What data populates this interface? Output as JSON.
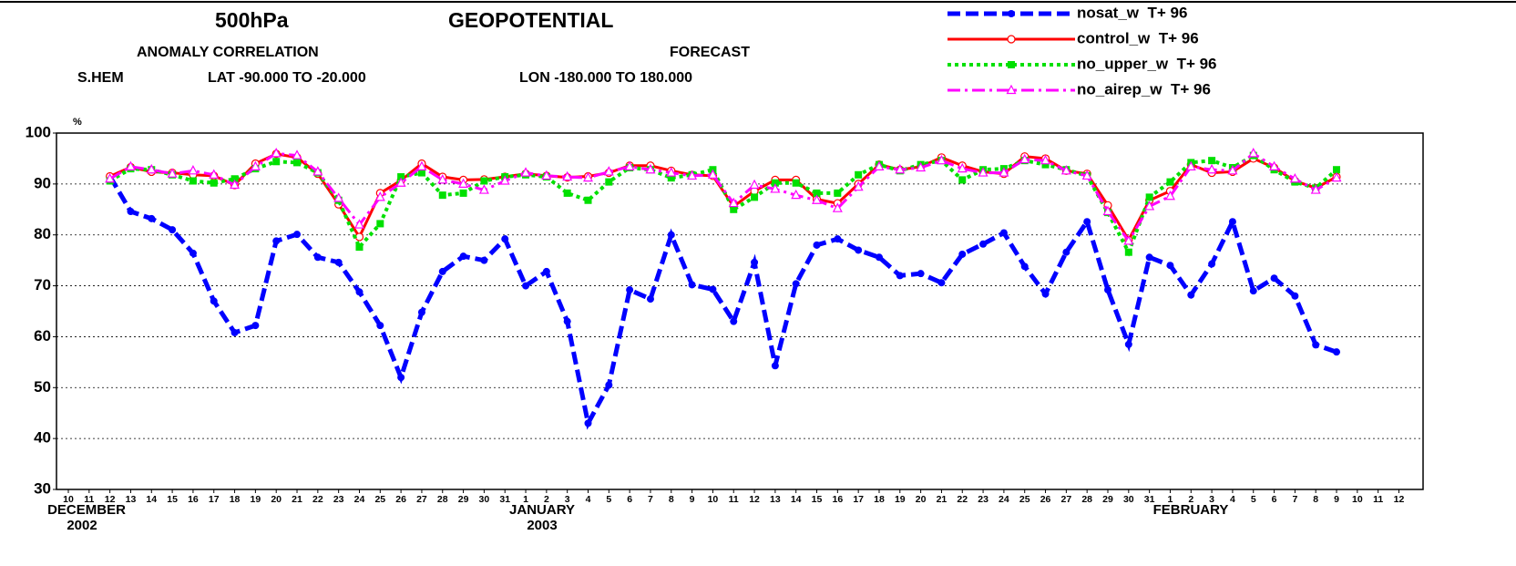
{
  "chart_data": {
    "type": "line",
    "title": "500hPa",
    "title2": "GEOPOTENTIAL",
    "subtitle": "ANOMALY CORRELATION",
    "subtitle2": "FORECAST",
    "region": "S.HEM",
    "lat_range": "LAT -90.000 TO -20.000",
    "lon_range": "LON -180.000 TO 180.000",
    "y_label": "%",
    "month_labels": [
      "DECEMBER",
      "JANUARY",
      "FEBRUARY"
    ],
    "year_labels": [
      "2002",
      "2003"
    ],
    "categories": [
      "10",
      "11",
      "12",
      "13",
      "14",
      "15",
      "16",
      "17",
      "18",
      "19",
      "20",
      "21",
      "22",
      "23",
      "24",
      "25",
      "26",
      "27",
      "28",
      "29",
      "30",
      "31",
      "1",
      "2",
      "3",
      "4",
      "5",
      "6",
      "7",
      "8",
      "9",
      "10",
      "11",
      "12",
      "13",
      "14",
      "15",
      "16",
      "17",
      "18",
      "19",
      "20",
      "21",
      "22",
      "23",
      "24",
      "25",
      "26",
      "27",
      "28",
      "29",
      "30",
      "31",
      "1",
      "2",
      "3",
      "4",
      "5",
      "6",
      "7",
      "8",
      "9",
      "10",
      "11",
      "12"
    ],
    "highlight_ticks": [
      5,
      12,
      19,
      26,
      33,
      40,
      47,
      54,
      61
    ],
    "highlight_color": "#ff0000",
    "ylim": [
      30,
      100
    ],
    "yticks": [
      30,
      40,
      50,
      60,
      70,
      80,
      90,
      100
    ],
    "grid": true,
    "legend": "top-right",
    "series": [
      {
        "name": "nosat_w  T+ 96",
        "color": "#0000ff",
        "dash": "dashed",
        "marker": "filled-circle",
        "values": [
          null,
          null,
          91.5,
          84.6,
          83.2,
          81,
          76.4,
          67,
          60.8,
          62.2,
          78.8,
          80.1,
          75.6,
          74.6,
          68.8,
          62.2,
          52,
          64.8,
          72.8,
          75.8,
          75,
          79.2,
          70,
          72.8,
          63,
          43,
          50.5,
          69.2,
          67.4,
          80,
          70.2,
          69.3,
          63,
          74.6,
          54.3,
          70.4,
          78,
          79.2,
          77,
          75.6,
          72,
          72.4,
          70.6,
          76.2,
          78.2,
          80.4,
          73.8,
          68.4,
          76.6,
          82.6,
          69.2,
          58.5,
          75.6,
          74,
          68.2,
          74.3,
          82.6,
          69,
          71.5,
          68,
          58.4,
          57,
          null,
          null,
          null
        ]
      },
      {
        "name": "control_w  T+ 96",
        "color": "#ff0000",
        "dash": "solid",
        "marker": "open-circle",
        "values": [
          null,
          null,
          91.5,
          93.3,
          92.4,
          92.2,
          91.8,
          91.6,
          89.8,
          94,
          95.9,
          95.2,
          92,
          86,
          79.6,
          88.2,
          90.7,
          94,
          91.4,
          90.8,
          90.9,
          91.4,
          92,
          91.6,
          91.3,
          91.5,
          92.2,
          93.6,
          93.6,
          92.6,
          91.8,
          91.6,
          85.6,
          88.6,
          90.8,
          90.8,
          87,
          86.2,
          90,
          93.8,
          92.8,
          93.4,
          95.2,
          93.6,
          92.4,
          92,
          95.4,
          95,
          92.6,
          92,
          85.8,
          79,
          86.8,
          88.6,
          93.8,
          92.2,
          92.4,
          95,
          93.2,
          90.6,
          89.2,
          91.4,
          null,
          null,
          null
        ]
      },
      {
        "name": "no_upper_w  T+ 96",
        "color": "#00e000",
        "dash": "dotted",
        "marker": "filled-square",
        "values": [
          null,
          null,
          90.6,
          93,
          92.8,
          91.8,
          90.6,
          90.2,
          91,
          93,
          94.4,
          94.2,
          92.2,
          86.8,
          77.6,
          82.2,
          91.4,
          92.2,
          87.8,
          88.2,
          90.6,
          91.4,
          91.8,
          91.4,
          88.2,
          86.8,
          90.4,
          93.2,
          92.8,
          91.2,
          91.8,
          92.8,
          85,
          87.4,
          90.2,
          90.2,
          88.2,
          88.2,
          91.8,
          93.8,
          92.6,
          93.8,
          94.6,
          90.8,
          92.8,
          93,
          94.6,
          93.8,
          92.8,
          91.6,
          84.4,
          76.6,
          87.4,
          90.4,
          94.2,
          94.6,
          93.2,
          95.6,
          92.8,
          90.4,
          89.2,
          92.8,
          null,
          null,
          null
        ]
      },
      {
        "name": "no_airep_w  T+ 96",
        "color": "#ff00ff",
        "dash": "dash-dot",
        "marker": "open-triangle",
        "values": [
          null,
          null,
          91,
          93.4,
          92.8,
          92,
          92.6,
          91.8,
          89.8,
          93.4,
          96,
          95.6,
          92.4,
          87.2,
          82,
          87.4,
          90.2,
          93.4,
          90.8,
          90,
          88.8,
          90.6,
          92.2,
          91.6,
          91.4,
          91.2,
          92.4,
          93.4,
          92.8,
          92.2,
          91.6,
          91.8,
          86.2,
          89.8,
          89,
          87.8,
          86.8,
          85.2,
          89.4,
          93.4,
          92.8,
          93.2,
          94.6,
          93,
          92.2,
          92.2,
          94.8,
          94.6,
          92.6,
          91.6,
          84.6,
          78.8,
          85.6,
          87.6,
          93.4,
          92.8,
          92.6,
          96,
          93.4,
          91,
          88.8,
          91.2,
          null,
          null,
          null
        ]
      }
    ]
  }
}
